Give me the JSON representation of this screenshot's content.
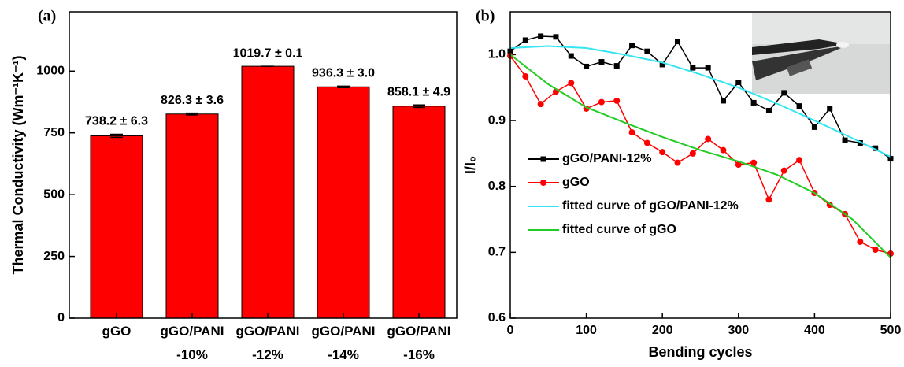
{
  "chart_data": [
    {
      "type": "bar",
      "panel_label": "(a)",
      "y_label": "Thermal Conductivity (Wm⁻¹K⁻¹)",
      "categories": [
        "gGO",
        "gGO/PANI\n-10%",
        "gGO/PANI\n-12%",
        "gGO/PANI\n-14%",
        "gGO/PANI\n-16%"
      ],
      "values": [
        738.2,
        826.3,
        1019.7,
        936.3,
        858.1
      ],
      "errors": [
        6.3,
        3.6,
        0.1,
        3.0,
        4.9
      ],
      "value_labels": [
        "738.2 ± 6.3",
        "826.3 ± 3.6",
        "1019.7 ± 0.1",
        "936.3 ± 3.0",
        "858.1 ± 4.9"
      ],
      "color": "#ff0000",
      "ylim": [
        0,
        1240
      ],
      "yticks": [
        0,
        250,
        500,
        750,
        1000
      ]
    },
    {
      "type": "line",
      "panel_label": "(b)",
      "x_label": "Bending cycles",
      "y_label": "I/I₀",
      "xlim": [
        0,
        500
      ],
      "xticks": [
        0,
        100,
        200,
        300,
        400,
        500
      ],
      "ylim": [
        0.6,
        1.065
      ],
      "yticks": [
        {
          "value": 0.6,
          "label": "0.6"
        },
        0.7,
        0.8,
        0.9,
        {
          "value": 1,
          "label": "1.0"
        }
      ],
      "legend": "lower left",
      "series": [
        {
          "name": "gGO/PANI-12%",
          "color": "#000000",
          "marker": "square",
          "x": [
            0,
            20,
            40,
            60,
            80,
            100,
            120,
            140,
            160,
            180,
            200,
            220,
            240,
            260,
            280,
            300,
            320,
            340,
            360,
            380,
            400,
            420,
            440,
            460,
            480,
            500
          ],
          "values": [
            1.005,
            1.022,
            1.028,
            1.027,
            0.998,
            0.982,
            0.989,
            0.983,
            1.014,
            1.005,
            0.985,
            1.02,
            0.98,
            0.98,
            0.93,
            0.958,
            0.927,
            0.915,
            0.942,
            0.922,
            0.89,
            0.918,
            0.87,
            0.866,
            0.858,
            0.842
          ]
        },
        {
          "name": "gGO",
          "color": "#ff0000",
          "marker": "circle",
          "x": [
            0,
            20,
            40,
            60,
            80,
            100,
            120,
            140,
            160,
            180,
            200,
            220,
            240,
            260,
            280,
            300,
            320,
            340,
            360,
            380,
            400,
            420,
            440,
            460,
            480,
            500
          ],
          "values": [
            0.998,
            0.967,
            0.925,
            0.944,
            0.957,
            0.918,
            0.928,
            0.93,
            0.882,
            0.866,
            0.852,
            0.836,
            0.85,
            0.872,
            0.855,
            0.833,
            0.836,
            0.78,
            0.824,
            0.84,
            0.79,
            0.772,
            0.758,
            0.716,
            0.704,
            0.698
          ]
        },
        {
          "name": "fitted curve of gGO/PANI-12%",
          "color": "#33e6f2",
          "marker": null,
          "x": [
            0,
            50,
            100,
            150,
            200,
            250,
            300,
            350,
            400,
            450,
            500
          ],
          "values": [
            1.01,
            1.013,
            1.01,
            1.0,
            0.988,
            0.97,
            0.95,
            0.926,
            0.9,
            0.873,
            0.845
          ]
        },
        {
          "name": "fitted curve of gGO",
          "color": "#22cc22",
          "marker": null,
          "x": [
            0,
            50,
            100,
            150,
            200,
            250,
            300,
            350,
            400,
            450,
            500
          ],
          "values": [
            1.0,
            0.955,
            0.92,
            0.897,
            0.875,
            0.855,
            0.838,
            0.818,
            0.79,
            0.75,
            0.692
          ]
        }
      ]
    }
  ]
}
